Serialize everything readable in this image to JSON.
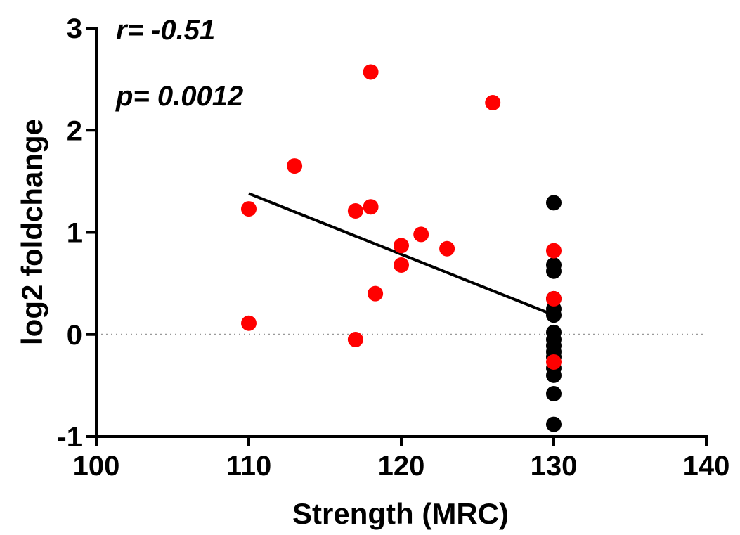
{
  "chart_data": {
    "type": "scatter",
    "title": "",
    "xlabel": "Strength (MRC)",
    "ylabel": "log2 foldchange",
    "xlim": [
      100,
      140
    ],
    "ylim": [
      -1,
      3
    ],
    "xticks": [
      100,
      110,
      120,
      130,
      140
    ],
    "yticks": [
      -1,
      0,
      1,
      2,
      3
    ],
    "grid": false,
    "reference_line": {
      "y": 0,
      "style": "dotted",
      "color": "#999999"
    },
    "annotations": {
      "r": "r= -0.51",
      "p": "p= 0.0012"
    },
    "series": [
      {
        "color": "#ff0000",
        "points": [
          {
            "x": 110,
            "y": 1.23
          },
          {
            "x": 110,
            "y": 0.11
          },
          {
            "x": 113,
            "y": 1.65
          },
          {
            "x": 117,
            "y": 1.21
          },
          {
            "x": 117,
            "y": -0.05
          },
          {
            "x": 118,
            "y": 1.25
          },
          {
            "x": 118,
            "y": 2.57
          },
          {
            "x": 118.3,
            "y": 0.4
          },
          {
            "x": 120,
            "y": 0.87
          },
          {
            "x": 120,
            "y": 0.68
          },
          {
            "x": 121.3,
            "y": 0.98
          },
          {
            "x": 123,
            "y": 0.84
          },
          {
            "x": 126,
            "y": 2.27
          },
          {
            "x": 130,
            "y": 0.82
          },
          {
            "x": 130,
            "y": 0.35
          },
          {
            "x": 130,
            "y": -0.27
          }
        ]
      },
      {
        "color": "#000000",
        "points": [
          {
            "x": 130,
            "y": 1.29
          },
          {
            "x": 130,
            "y": 0.68
          },
          {
            "x": 130,
            "y": 0.62
          },
          {
            "x": 130,
            "y": 0.35
          },
          {
            "x": 130,
            "y": 0.25
          },
          {
            "x": 130,
            "y": 0.19
          },
          {
            "x": 130,
            "y": 0.02
          },
          {
            "x": 130,
            "y": -0.05
          },
          {
            "x": 130,
            "y": -0.11
          },
          {
            "x": 130,
            "y": -0.17
          },
          {
            "x": 130,
            "y": -0.22
          },
          {
            "x": 130,
            "y": -0.33
          },
          {
            "x": 130,
            "y": -0.4
          },
          {
            "x": 130,
            "y": -0.58
          },
          {
            "x": 130,
            "y": -0.88
          }
        ]
      }
    ],
    "regression_line": {
      "x1": 110,
      "y1": 1.38,
      "x2": 130,
      "y2": 0.19,
      "color": "#000000"
    }
  }
}
